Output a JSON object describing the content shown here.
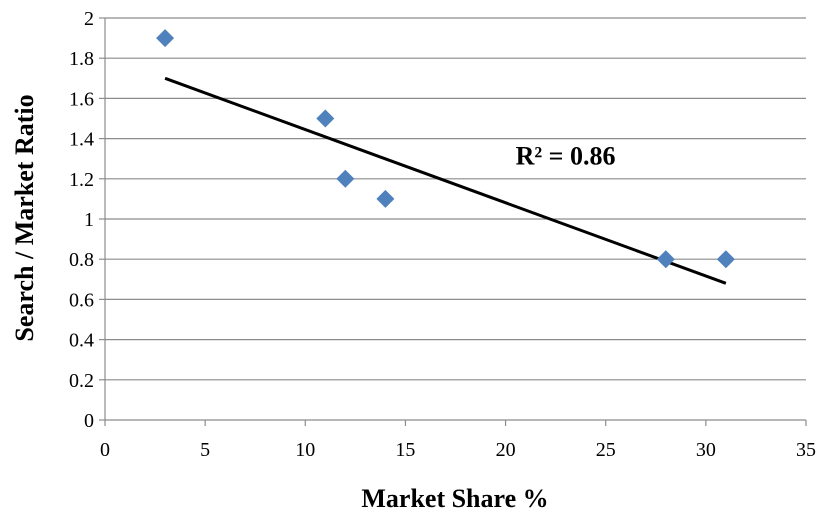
{
  "chart_data": {
    "type": "scatter",
    "xlabel": "Market Share %",
    "ylabel": "Search / Market Ratio",
    "xlim": [
      0,
      35
    ],
    "ylim": [
      0,
      2
    ],
    "x_ticks": [
      0,
      5,
      10,
      15,
      20,
      25,
      30,
      35
    ],
    "y_ticks": [
      0,
      0.2,
      0.4,
      0.6,
      0.8,
      1,
      1.2,
      1.4,
      1.6,
      1.8,
      2
    ],
    "x_tick_labels": [
      "0",
      "5",
      "10",
      "15",
      "20",
      "25",
      "30",
      "35"
    ],
    "y_tick_labels": [
      "0",
      "0.2",
      "0.4",
      "0.6",
      "0.8",
      "1",
      "1.2",
      "1.4",
      "1.6",
      "1.8",
      "2"
    ],
    "grid": "horizontal",
    "marker": "diamond",
    "points": [
      {
        "x": 3,
        "y": 1.9
      },
      {
        "x": 11,
        "y": 1.5
      },
      {
        "x": 12,
        "y": 1.2
      },
      {
        "x": 14,
        "y": 1.1
      },
      {
        "x": 28,
        "y": 0.8
      },
      {
        "x": 31,
        "y": 0.8
      }
    ],
    "trendline": {
      "type": "linear",
      "from": {
        "x": 3,
        "y": 1.7
      },
      "to": {
        "x": 31,
        "y": 0.68
      }
    },
    "annotations": [
      {
        "text": "R² = 0.86",
        "x": 20.5,
        "y": 1.3
      }
    ],
    "colors": {
      "marker": "#4F81BD",
      "trendline": "#000000",
      "grid": "#8C8C8C",
      "axis": "#8C8C8C"
    }
  }
}
